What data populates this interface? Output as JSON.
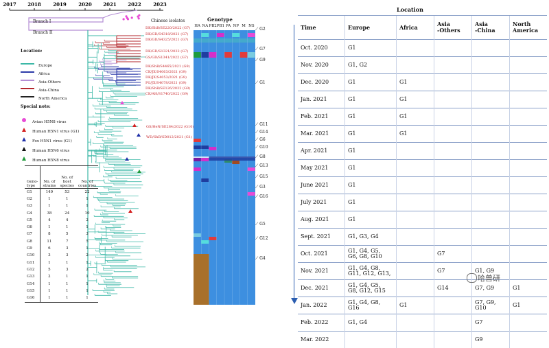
{
  "years": [
    "2017",
    "2018",
    "2019",
    "2020",
    "2021",
    "2022",
    "2023"
  ],
  "branches": {
    "b1": "Branch I",
    "b2": "Branch II"
  },
  "chinese_isolates": {
    "heading": "Chinese isolates",
    "labels": [
      "DK/ShB/SE220/2022 (G7)",
      "DK/GD/S4318/2021 (G7)",
      "DK/GD/S4325/2021 (G7)",
      "DK/GD/S1321/2022 (G7)",
      "GS/GD/S1341/2022 (G7)",
      "DK/ShB/S4465/2021 (G9)",
      "CK/JX/S4063/2021 (G9)",
      "DK/JX/S4053/2021 (G9)",
      "PG/JX/S4078/2021 (G9)",
      "DK/ShB/SE126/2022 (G9)",
      "CK/AH/S1740/2022 (G9)"
    ],
    "g10": "GS/HeN/SE284/2022 (G10)",
    "g1": "WD/ShB/SD012/2021 (G1)"
  },
  "genotype": {
    "title": "Genotype",
    "segments": [
      "HA",
      "NA",
      "PB2",
      "PB1",
      "PA",
      "NP",
      "M",
      "NS"
    ],
    "labels": [
      "G2",
      "G7",
      "G9",
      "G1",
      "G11",
      "G14",
      "G6",
      "G10",
      "G8",
      "G13",
      "G15",
      "G3",
      "G16",
      "G5",
      "G12",
      "G4"
    ]
  },
  "location_legend": {
    "title": "Location:",
    "items": [
      {
        "label": "Europe",
        "color": "#3cb8a7"
      },
      {
        "label": "Africa",
        "color": "#2b3aa8"
      },
      {
        "label": "Asia-Others",
        "color": "#b48ed4"
      },
      {
        "label": "Asia-China",
        "color": "#b3262b"
      },
      {
        "label": "North America",
        "color": "#222222"
      }
    ]
  },
  "special_note": {
    "title": "Special note:",
    "items": [
      {
        "label": "Avian H5N8 virus",
        "color": "#e84bd6",
        "shape": "circle"
      },
      {
        "label": "Human H5N1 virus (G1)",
        "color": "#d42020",
        "shape": "triangle"
      },
      {
        "label": "Fox H5N1 virus (G1)",
        "color": "#2030a8",
        "shape": "triangle"
      },
      {
        "label": "Human H5N6 virus",
        "color": "#111111",
        "shape": "triangle"
      },
      {
        "label": "Human H5N8 virus",
        "color": "#1f9a3a",
        "shape": "triangle"
      }
    ]
  },
  "genotype_table": {
    "headers": [
      "Geno-\ntype",
      "No. of\nstrains",
      "No. of\nhost\nspecies",
      "No. of\ncountries"
    ],
    "rows": [
      [
        "G1",
        "149",
        "53",
        "22"
      ],
      [
        "G2",
        "1",
        "1",
        "1"
      ],
      [
        "G3",
        "1",
        "1",
        "1"
      ],
      [
        "G4",
        "38",
        "24",
        "10"
      ],
      [
        "G5",
        "4",
        "4",
        "2"
      ],
      [
        "G6",
        "1",
        "1",
        "1"
      ],
      [
        "G7",
        "8",
        "5",
        "3"
      ],
      [
        "G8",
        "11",
        "7",
        "5"
      ],
      [
        "G9",
        "6",
        "3",
        "1"
      ],
      [
        "G10",
        "3",
        "3",
        "2"
      ],
      [
        "G11",
        "1",
        "1",
        "1"
      ],
      [
        "G12",
        "5",
        "3",
        "2"
      ],
      [
        "G13",
        "2",
        "1",
        "1"
      ],
      [
        "G14",
        "1",
        "1",
        "1"
      ],
      [
        "G15",
        "1",
        "1",
        "1"
      ],
      [
        "G16",
        "1",
        "1",
        "1"
      ]
    ]
  },
  "location_table": {
    "title": "Location",
    "headers": [
      "Time",
      "Europe",
      "Africa",
      "Asia\n-Others",
      "Asia\n-China",
      "North\nAmerica"
    ],
    "rows": [
      [
        "Oct. 2020",
        "G1",
        "",
        "",
        "",
        ""
      ],
      [
        "Nov. 2020",
        "G1, G2",
        "",
        "",
        "",
        ""
      ],
      [
        "Dec. 2020",
        "G1",
        "G1",
        "",
        "",
        ""
      ],
      [
        "Jan. 2021",
        "G1",
        "G1",
        "",
        "",
        ""
      ],
      [
        "Feb. 2021",
        "G1",
        "G1",
        "",
        "",
        ""
      ],
      [
        "Mar. 2021",
        "G1",
        "G1",
        "",
        "",
        ""
      ],
      [
        "Apr. 2021",
        "G1",
        "",
        "",
        "",
        ""
      ],
      [
        "May 2021",
        "G1",
        "",
        "",
        "",
        ""
      ],
      [
        "June 2021",
        "G1",
        "",
        "",
        "",
        ""
      ],
      [
        "July 2021",
        "G1",
        "",
        "",
        "",
        ""
      ],
      [
        "Aug. 2021",
        "G1",
        "",
        "",
        "",
        ""
      ],
      [
        "Sept. 2021",
        "G1, G3, G4",
        "",
        "",
        "",
        ""
      ],
      [
        "Oct. 2021",
        "G1, G4, G5,\nG6, G8, G10",
        "",
        "G7",
        "",
        ""
      ],
      [
        "Nov. 2021",
        "G1, G4, G8,\nG11, G12, G13,",
        "",
        "G7",
        "G1, G9",
        ""
      ],
      [
        "Dec. 2021",
        "G1, G4, G5,\nG8, G12, G15",
        "",
        "G14",
        "G7, G9",
        "G1"
      ],
      [
        "Jan. 2022",
        "G1, G4, G8,\nG16",
        "G1",
        "",
        "G7, G9,\nG10",
        "G1"
      ],
      [
        "Feb. 2022",
        "G1, G4",
        "",
        "",
        "G7",
        ""
      ],
      [
        "Mar. 2022",
        "",
        "",
        "",
        "G9",
        ""
      ]
    ]
  },
  "watermark": "哈兽研"
}
